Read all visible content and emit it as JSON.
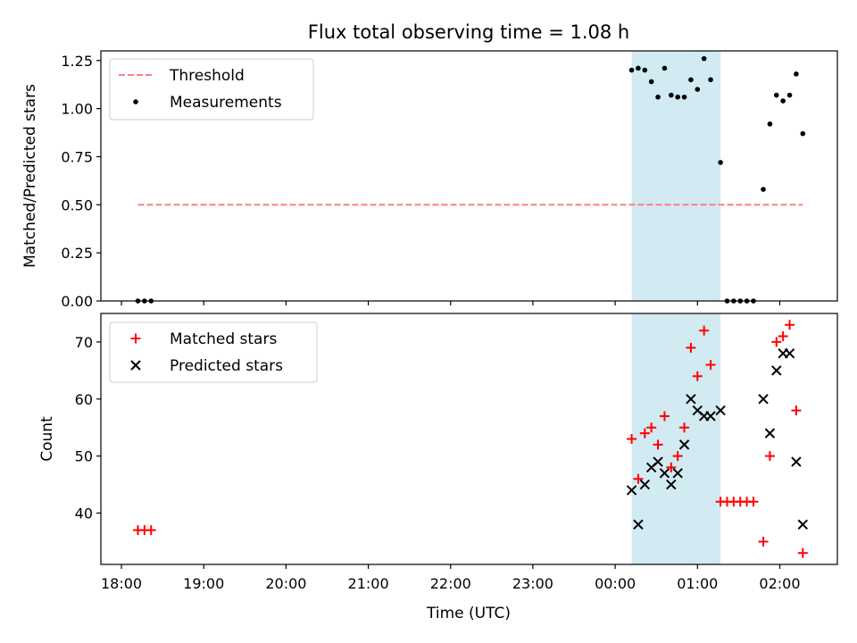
{
  "chart_data": {
    "type": "scatter",
    "title": "Flux total observing time = 1.08 h",
    "xlabel": "Time (UTC)",
    "x_tick_labels": [
      "18:00",
      "19:00",
      "20:00",
      "21:00",
      "22:00",
      "23:00",
      "00:00",
      "01:00",
      "02:00"
    ],
    "x_tick_hours": [
      0,
      1,
      2,
      3,
      4,
      5,
      6,
      7,
      8
    ],
    "xlim_hours": [
      -0.25,
      8.7
    ],
    "shaded_span_hours": [
      6.2,
      7.28
    ],
    "shade_color": "#add8e6",
    "panels": [
      {
        "ylabel": "Matched/Predicted stars",
        "ylim": [
          0,
          1.3
        ],
        "y_ticks": [
          0.0,
          0.25,
          0.5,
          0.75,
          1.0,
          1.25
        ],
        "y_tick_labels": [
          "0.00",
          "0.25",
          "0.50",
          "0.75",
          "1.00",
          "1.25"
        ],
        "legend": {
          "placement": "top-left",
          "entries": [
            "Threshold",
            "Measurements"
          ]
        },
        "threshold": {
          "name": "Threshold",
          "value": 0.5,
          "x_range": [
            0.2,
            8.28
          ],
          "color": "#ff7f7f"
        },
        "series": [
          {
            "name": "Measurements",
            "marker": "dot",
            "color": "#000000",
            "x": [
              0.2,
              0.28,
              0.36,
              6.2,
              6.28,
              6.36,
              6.44,
              6.52,
              6.6,
              6.68,
              6.76,
              6.84,
              6.92,
              7.0,
              7.08,
              7.16,
              7.28,
              7.36,
              7.44,
              7.52,
              7.6,
              7.68,
              7.8,
              7.88,
              7.96,
              8.04,
              8.12,
              8.2,
              8.28
            ],
            "y": [
              0,
              0,
              0,
              1.2,
              1.21,
              1.2,
              1.14,
              1.06,
              1.21,
              1.07,
              1.06,
              1.06,
              1.15,
              1.1,
              1.26,
              1.15,
              0.72,
              0,
              0,
              0,
              0,
              0,
              0.58,
              0.92,
              1.07,
              1.04,
              1.07,
              1.18,
              0.87
            ]
          }
        ]
      },
      {
        "ylabel": "Count",
        "ylim": [
          31,
          75
        ],
        "y_ticks": [
          40,
          50,
          60,
          70
        ],
        "y_tick_labels": [
          "40",
          "50",
          "60",
          "70"
        ],
        "legend": {
          "placement": "top-left",
          "entries": [
            "Matched stars",
            "Predicted stars"
          ]
        },
        "series": [
          {
            "name": "Matched stars",
            "marker": "plus",
            "color": "#ff0000",
            "x": [
              0.2,
              0.28,
              0.36,
              6.2,
              6.28,
              6.36,
              6.44,
              6.52,
              6.6,
              6.68,
              6.76,
              6.84,
              6.92,
              7.0,
              7.08,
              7.16,
              7.28,
              7.36,
              7.44,
              7.52,
              7.6,
              7.68,
              7.8,
              7.88,
              7.96,
              8.04,
              8.12,
              8.2,
              8.28
            ],
            "y": [
              37,
              37,
              37,
              53,
              46,
              54,
              55,
              52,
              57,
              48,
              50,
              55,
              69,
              64,
              72,
              66,
              42,
              42,
              42,
              42,
              42,
              42,
              35,
              50,
              70,
              71,
              73,
              58,
              33
            ]
          },
          {
            "name": "Predicted stars",
            "marker": "x",
            "color": "#000000",
            "x": [
              6.2,
              6.28,
              6.36,
              6.44,
              6.52,
              6.6,
              6.68,
              6.76,
              6.84,
              6.92,
              7.0,
              7.08,
              7.16,
              7.28,
              7.8,
              7.88,
              7.96,
              8.04,
              8.12,
              8.2,
              8.28
            ],
            "y": [
              44,
              38,
              45,
              48,
              49,
              47,
              45,
              47,
              52,
              60,
              58,
              57,
              57,
              58,
              60,
              54,
              65,
              68,
              68,
              49,
              38
            ]
          }
        ]
      }
    ]
  }
}
